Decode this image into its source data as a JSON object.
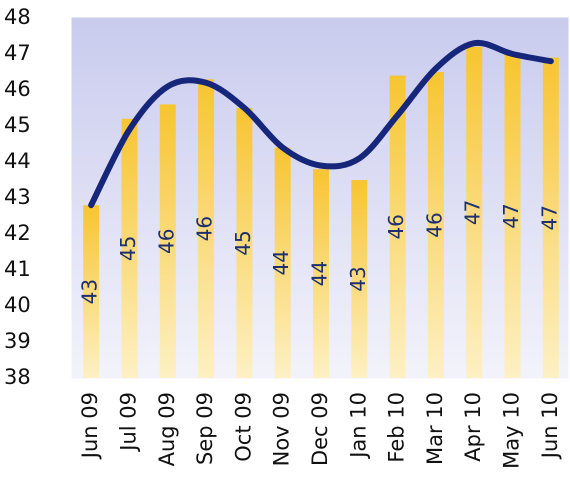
{
  "chart_data": {
    "type": "bar",
    "categories": [
      "Jun 09",
      "Jul 09",
      "Aug 09",
      "Sep 09",
      "Oct 09",
      "Nov 09",
      "Dec 09",
      "Jan 10",
      "Feb 10",
      "Mar 10",
      "Apr 10",
      "May 10",
      "Jun 10"
    ],
    "values": [
      42.8,
      45.2,
      45.6,
      46.3,
      45.5,
      44.4,
      43.8,
      43.5,
      46.4,
      46.5,
      47.2,
      47.0,
      46.9
    ],
    "value_labels": [
      "43",
      "45",
      "46",
      "46",
      "45",
      "44",
      "44",
      "43",
      "46",
      "46",
      "47",
      "47",
      "47"
    ],
    "color": "#f7c531",
    "line_values": [
      42.8,
      44.9,
      46.1,
      46.2,
      45.5,
      44.4,
      43.9,
      44.1,
      45.3,
      46.6,
      47.3,
      47.0,
      46.8
    ],
    "line_color": "#16267a",
    "ylim": [
      38,
      48
    ],
    "yticks": [
      38,
      39,
      40,
      41,
      42,
      43,
      44,
      45,
      46,
      47,
      48
    ],
    "grid": false
  }
}
